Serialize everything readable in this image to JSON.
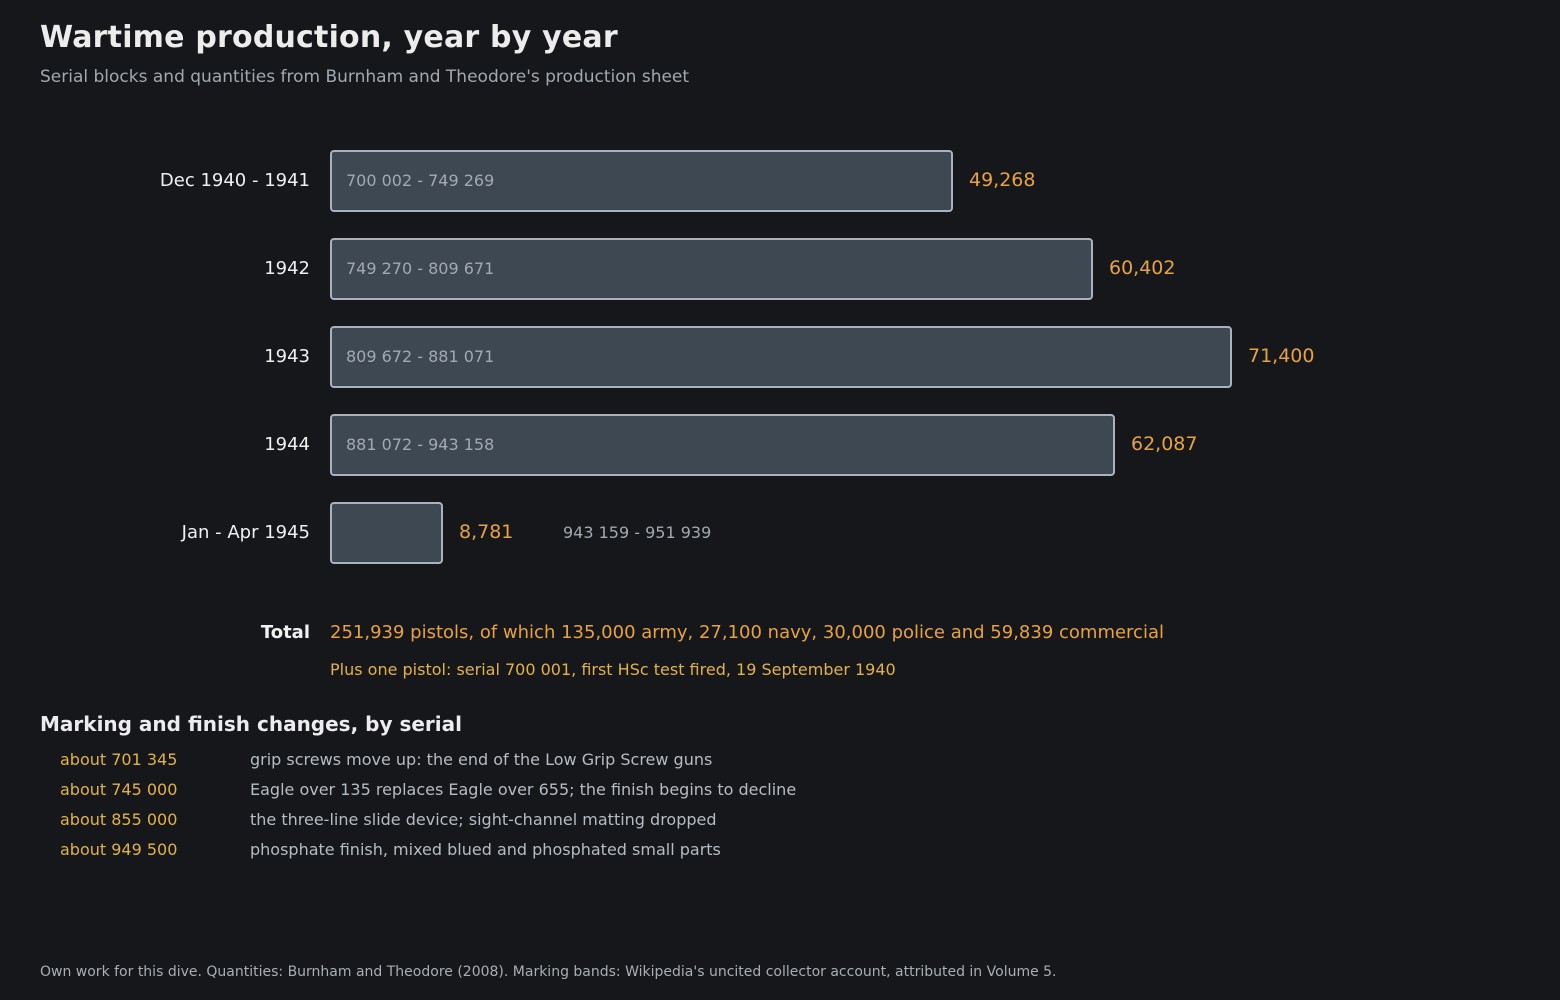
{
  "header": {
    "title": "Wartime production, year by year",
    "subtitle": "Serial blocks and quantities from Burnham and Theodore's production sheet"
  },
  "chart_data": {
    "type": "bar",
    "orientation": "horizontal",
    "categories": [
      "Dec 1940 - 1941",
      "1942",
      "1943",
      "1944",
      "Jan - Apr 1945"
    ],
    "values": [
      49268,
      60402,
      71400,
      62087,
      8781
    ],
    "value_labels": [
      "49,268",
      "60,402",
      "71,400",
      "62,087",
      "8,781"
    ],
    "serial_ranges": [
      "700 002 - 749 269",
      "749 270 - 809 671",
      "809 672 - 881 071",
      "881 072 - 943 158",
      "943 159 - 951 939"
    ],
    "xlim": [
      0,
      71400
    ],
    "grid": false,
    "title": "Wartime production, year by year",
    "subtitle": "Serial blocks and quantities from Burnham and Theodore's production sheet",
    "colors": {
      "bar_fill": "#3d4853",
      "bar_border": "#aab2bb",
      "value_text": "#e8a33d"
    }
  },
  "total": {
    "label": "Total",
    "text": "251,939 pistols, of which 135,000 army, 27,100 navy, 30,000 police and 59,839 commercial",
    "plus": "Plus one pistol: serial 700 001, first HSc test fired, 19 September 1940"
  },
  "changes": {
    "title": "Marking and finish changes, by serial",
    "items": [
      {
        "serial": "about 701 345",
        "desc": "grip screws move up: the end of the Low Grip Screw guns"
      },
      {
        "serial": "about 745 000",
        "desc": "Eagle over 135 replaces Eagle over 655; the finish begins to decline"
      },
      {
        "serial": "about 855 000",
        "desc": "the three-line slide device; sight-channel matting dropped"
      },
      {
        "serial": "about 949 500",
        "desc": "phosphate finish, mixed blued and phosphated small parts"
      }
    ]
  },
  "footer": {
    "text": "Own work for this dive. Quantities: Burnham and Theodore (2008). Marking bands: Wikipedia's uncited collector account, attributed in Volume 5."
  }
}
